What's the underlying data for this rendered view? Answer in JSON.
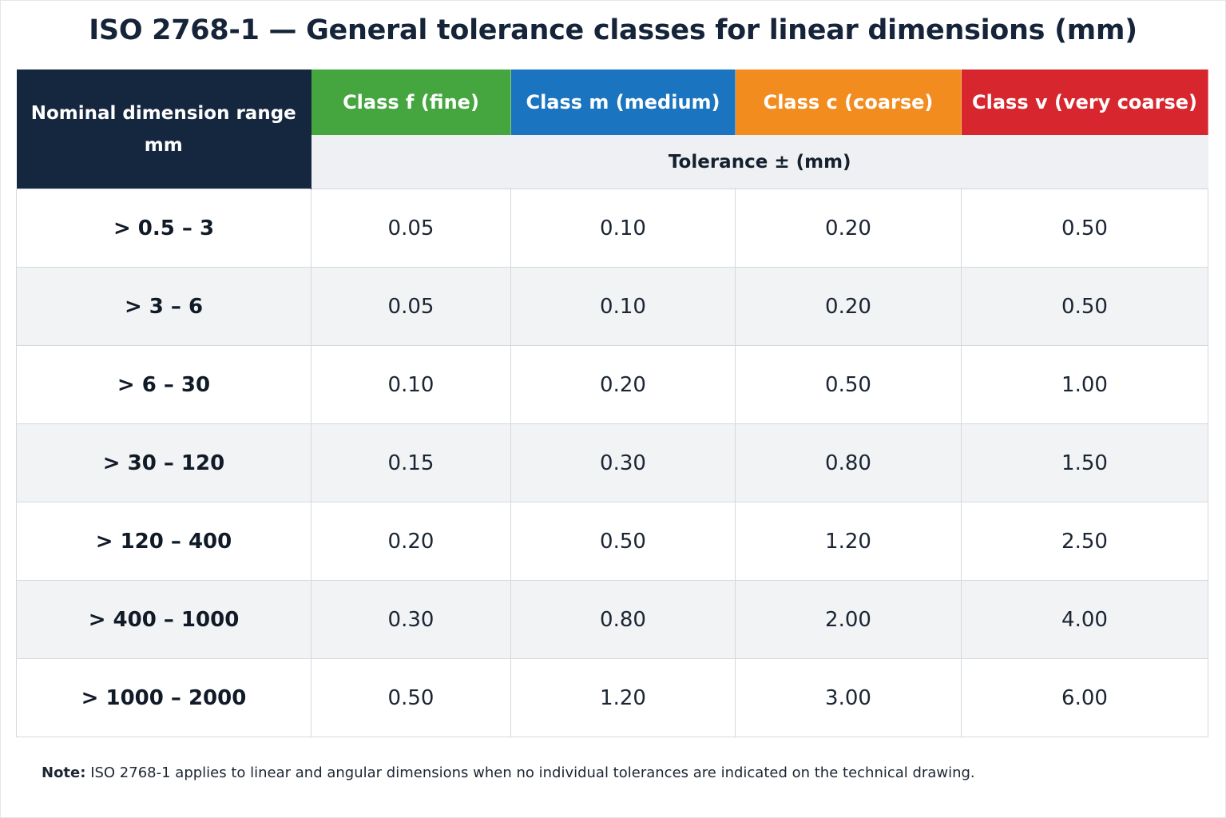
{
  "title": "ISO 2768-1 — General tolerance classes for linear dimensions (mm)",
  "table": {
    "range_header_line1": "Nominal dimension range",
    "range_header_line2": "mm",
    "classes": [
      {
        "label": "Class f (fine)",
        "color": "#45a53f"
      },
      {
        "label": "Class m (medium)",
        "color": "#1a74bf"
      },
      {
        "label": "Class c (coarse)",
        "color": "#f28c1f"
      },
      {
        "label": "Class v (very coarse)",
        "color": "#d7262e"
      }
    ],
    "subheader": "Tolerance ± (mm)",
    "rows": [
      {
        "range": "> 0.5 – 3",
        "values": [
          "0.05",
          "0.10",
          "0.20",
          "0.50"
        ]
      },
      {
        "range": "> 3 – 6",
        "values": [
          "0.05",
          "0.10",
          "0.20",
          "0.50"
        ]
      },
      {
        "range": "> 6 – 30",
        "values": [
          "0.10",
          "0.20",
          "0.50",
          "1.00"
        ]
      },
      {
        "range": "> 30 – 120",
        "values": [
          "0.15",
          "0.30",
          "0.80",
          "1.50"
        ]
      },
      {
        "range": "> 120 – 400",
        "values": [
          "0.20",
          "0.50",
          "1.20",
          "2.50"
        ]
      },
      {
        "range": "> 400 – 1000",
        "values": [
          "0.30",
          "0.80",
          "2.00",
          "4.00"
        ]
      },
      {
        "range": "> 1000 – 2000",
        "values": [
          "0.50",
          "1.20",
          "3.00",
          "6.00"
        ]
      }
    ]
  },
  "note": {
    "label": "Note:",
    "text": "ISO 2768-1 applies to linear and angular dimensions when no individual tolerances are indicated on the technical drawing."
  }
}
